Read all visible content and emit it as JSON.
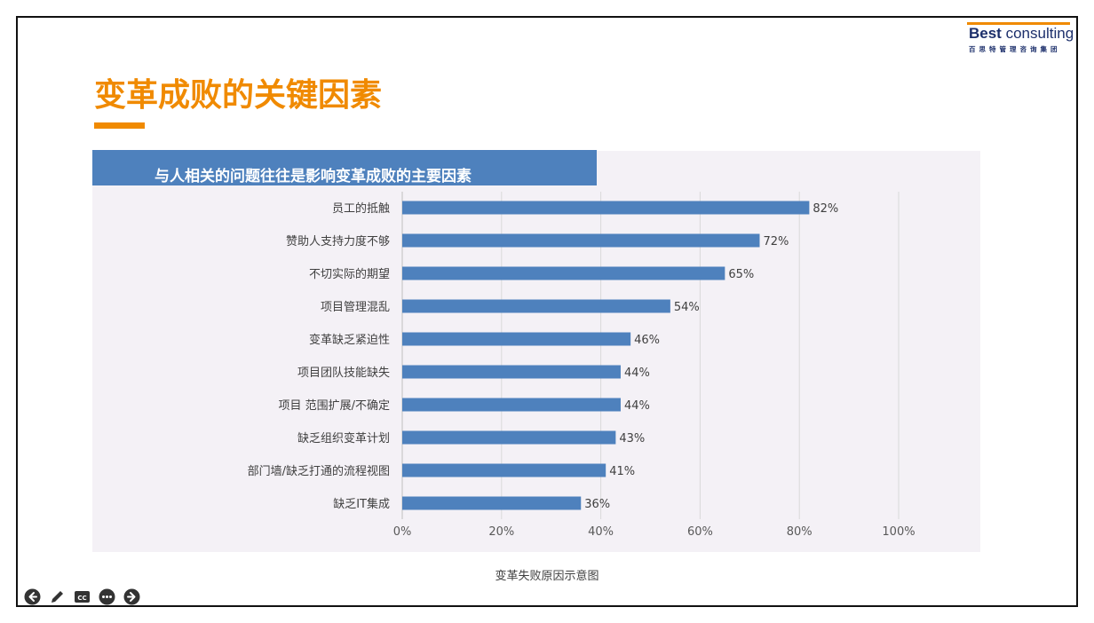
{
  "slide": {
    "title": "变革成败的关键因素",
    "banner": "与人相关的问题往往是影响变革成败的主要因素",
    "caption": "变革失败原因示意图"
  },
  "logo": {
    "brand_bold": "Best",
    "brand_rest": "consulting",
    "subtitle": "百思特管理咨询集团"
  },
  "colors": {
    "accent": "#f08a00",
    "bar": "#4e81bd",
    "panel": "#f4f1f6",
    "banner": "#4e81bd"
  },
  "chart_data": {
    "type": "bar",
    "orientation": "horizontal",
    "categories": [
      "员工的抵触",
      "赞助人支持力度不够",
      "不切实际的期望",
      "项目管理混乱",
      "变革缺乏紧迫性",
      "项目团队技能缺失",
      "项目 范围扩展/不确定",
      "缺乏组织变革计划",
      "部门墙/缺乏打通的流程视图",
      "缺乏IT集成"
    ],
    "values": [
      82,
      72,
      65,
      54,
      46,
      44,
      44,
      43,
      41,
      36
    ],
    "data_labels": [
      "82%",
      "72%",
      "65%",
      "54%",
      "46%",
      "44%",
      "44%",
      "43%",
      "41%",
      "36%"
    ],
    "x_ticks": [
      0,
      20,
      40,
      60,
      80,
      100
    ],
    "x_tick_labels": [
      "0%",
      "20%",
      "40%",
      "60%",
      "80%",
      "100%"
    ],
    "xlim": [
      0,
      100
    ],
    "grid": true,
    "legend": false,
    "title": "",
    "xlabel": "",
    "ylabel": ""
  },
  "toolbar": {
    "icons": [
      "back-arrow-icon",
      "pen-icon",
      "cc-icon",
      "more-icon",
      "forward-arrow-icon"
    ],
    "cc_label": "CC"
  }
}
